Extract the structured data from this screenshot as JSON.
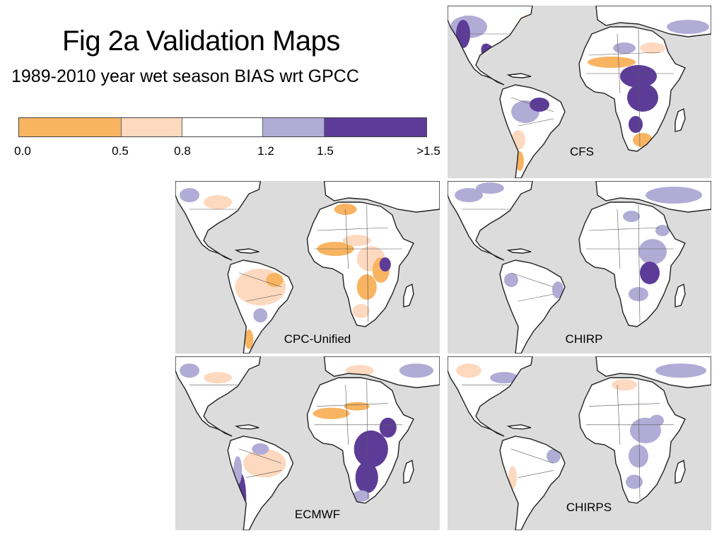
{
  "header": {
    "title": "Fig 2a Validation Maps",
    "subtitle": "1989-2010 year wet season BIAS  wrt GPCC"
  },
  "legend": {
    "classes": [
      {
        "from": 0.0,
        "to": 0.5,
        "color": "#f9b462"
      },
      {
        "from": 0.5,
        "to": 0.8,
        "color": "#fdd9c0"
      },
      {
        "from": 0.8,
        "to": 1.2,
        "color": "#ffffff"
      },
      {
        "from": 1.2,
        "to": 1.5,
        "color": "#b1acd6"
      },
      {
        "from": 1.5,
        "to": null,
        "color": "#5d3c98"
      }
    ],
    "tick_labels": [
      "0.0",
      "0.5",
      "0.8",
      "1.2",
      "1.5",
      ">1.5"
    ]
  },
  "maps": [
    {
      "name": "CFS",
      "ocean_color": "#dcdcdc",
      "dominant_bias": ">1.5 over central Africa and Central America, 0.0-0.5 across the Sahel and southern Africa"
    },
    {
      "name": "CPC-Unified",
      "ocean_color": "#dcdcdc",
      "dominant_bias": "0.5-0.8 over Amazon and much of Africa, 0.0-0.5 patches in West and East Africa"
    },
    {
      "name": "CHIRP",
      "ocean_color": "#dcdcdc",
      "dominant_bias": "1.2-1.5 over central Africa, mostly 0.8-1.2 elsewhere"
    },
    {
      "name": "ECMWF",
      "ocean_color": "#dcdcdc",
      "dominant_bias": ">1.5 along the Andes and southern Africa, 0.0-0.5 over the Sahara margin"
    },
    {
      "name": "CHIRPS",
      "ocean_color": "#dcdcdc",
      "dominant_bias": "mostly 0.8-1.2 with light 1.2-1.5 patches over Africa"
    }
  ]
}
